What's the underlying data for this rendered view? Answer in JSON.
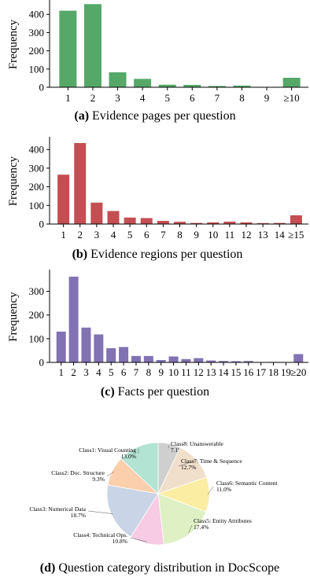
{
  "chart_data": [
    {
      "type": "bar",
      "caption_letter": "(a)",
      "caption_text": "Evidence pages per question",
      "ylabel": "Frequency",
      "color": "#55a868",
      "categories": [
        "1",
        "2",
        "3",
        "4",
        "5",
        "6",
        "7",
        "8",
        "9",
        "≥10"
      ],
      "values": [
        420,
        456,
        82,
        46,
        14,
        13,
        7,
        9,
        1,
        52
      ],
      "yticks": [
        0,
        100,
        200,
        300,
        400
      ],
      "ylim": [
        0,
        470
      ]
    },
    {
      "type": "bar",
      "caption_letter": "(b)",
      "caption_text": "Evidence regions per question",
      "ylabel": "Frequency",
      "color": "#c44e52",
      "categories": [
        "1",
        "2",
        "3",
        "4",
        "5",
        "6",
        "7",
        "8",
        "9",
        "10",
        "11",
        "12",
        "13",
        "14",
        "≥15"
      ],
      "values": [
        265,
        435,
        115,
        70,
        35,
        32,
        17,
        12,
        6,
        9,
        13,
        9,
        5,
        6,
        47
      ],
      "yticks": [
        0,
        100,
        200,
        300,
        400
      ],
      "ylim": [
        0,
        460
      ]
    },
    {
      "type": "bar",
      "caption_letter": "(c)",
      "caption_text": "Facts per question",
      "ylabel": "Frequency",
      "color": "#8172b3",
      "categories": [
        "1",
        "2",
        "3",
        "4",
        "5",
        "6",
        "7",
        "8",
        "9",
        "10",
        "11",
        "12",
        "13",
        "14",
        "15",
        "16",
        "17",
        "18",
        "19",
        "≥20"
      ],
      "values": [
        130,
        362,
        147,
        118,
        60,
        65,
        27,
        27,
        10,
        25,
        14,
        18,
        8,
        6,
        5,
        6,
        1,
        2,
        1,
        35
      ],
      "yticks": [
        0,
        100,
        200,
        300
      ],
      "ylim": [
        0,
        385
      ]
    },
    {
      "type": "pie",
      "caption_letter": "(d)",
      "caption_text": "Question category distribution in DocScope",
      "slices": [
        {
          "label": "Class8: Unanswerable",
          "pct_label": "7.1%",
          "value": 7.1,
          "color": "#cfcfcf"
        },
        {
          "label": "Class7: Time & Sequence",
          "pct_label": "12.7%",
          "value": 12.7,
          "color": "#f0dfca"
        },
        {
          "label": "Class6: Semantic Content",
          "pct_label": "11.0%",
          "value": 11.0,
          "color": "#fbeda2"
        },
        {
          "label": "Class5: Entity Attributes",
          "pct_label": "17.4%",
          "value": 17.4,
          "color": "#dff0c5"
        },
        {
          "label": "Class4: Technical Ops.",
          "pct_label": "10.8%",
          "value": 10.8,
          "color": "#f6cbe3"
        },
        {
          "label": "Class3: Numerical Data",
          "pct_label": "18.7%",
          "value": 18.7,
          "color": "#c9d4e6"
        },
        {
          "label": "Class2: Doc. Structure",
          "pct_label": "9.3%",
          "value": 9.3,
          "color": "#fbcfac"
        },
        {
          "label": "Class1: Visual Counting",
          "pct_label": "13.0%",
          "value": 13.0,
          "color": "#b3e3d3"
        }
      ]
    }
  ]
}
